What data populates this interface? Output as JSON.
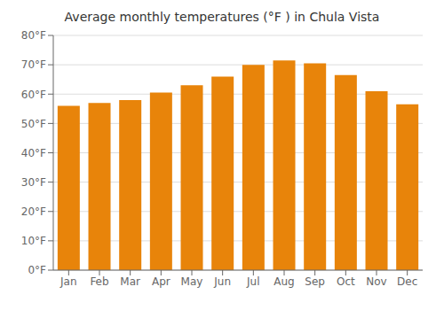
{
  "chart_data": {
    "type": "bar",
    "title": "Average monthly temperatures (°F ) in Chula Vista",
    "categories": [
      "Jan",
      "Feb",
      "Mar",
      "Apr",
      "May",
      "Jun",
      "Jul",
      "Aug",
      "Sep",
      "Oct",
      "Nov",
      "Dec"
    ],
    "values": [
      56,
      57,
      58,
      60.5,
      63,
      66,
      70,
      71.5,
      70.5,
      66.5,
      61,
      56.5
    ],
    "color": "#E8840A",
    "ylim": [
      0,
      80
    ],
    "yticks": [
      {
        "value": 0,
        "label": "0°F"
      },
      {
        "value": 10,
        "label": "10°F"
      },
      {
        "value": 20,
        "label": "20°F"
      },
      {
        "value": 30,
        "label": "30°F"
      },
      {
        "value": 40,
        "label": "40°F"
      },
      {
        "value": 50,
        "label": "50°F"
      },
      {
        "value": 60,
        "label": "60°F"
      },
      {
        "value": 70,
        "label": "70°F"
      },
      {
        "value": 80,
        "label": "80°F"
      }
    ],
    "grid": true
  }
}
